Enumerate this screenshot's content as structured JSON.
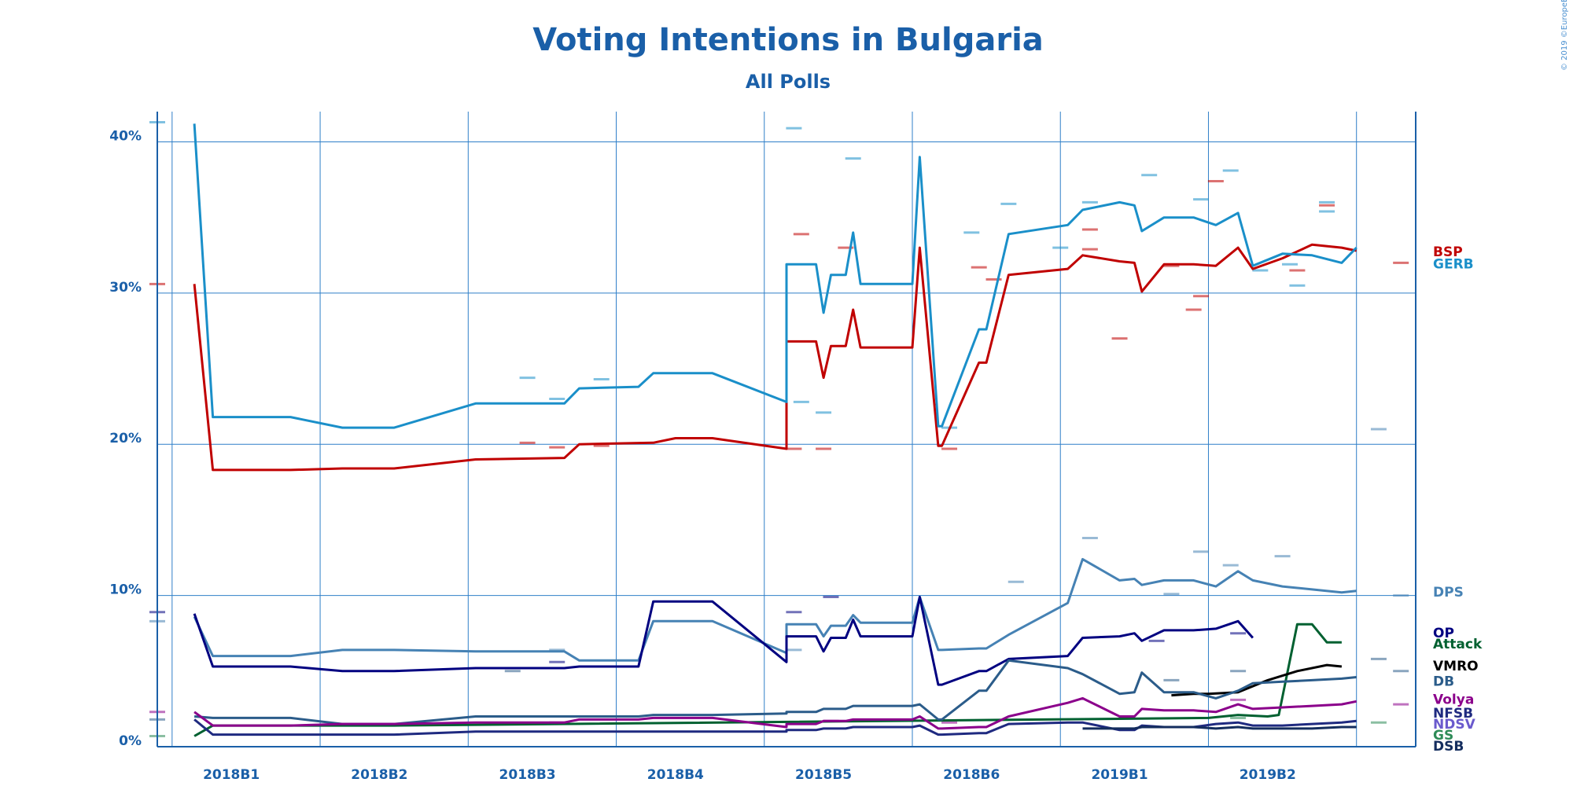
{
  "chart_data": {
    "type": "line",
    "title": "Voting Intentions in Bulgaria",
    "subtitle": "All Polls",
    "copyright": "© 2019 ©EuropeElects",
    "y_ticks": [
      {
        "value": 0,
        "label": "0%"
      },
      {
        "value": 10,
        "label": "10%"
      },
      {
        "value": 20,
        "label": "20%"
      },
      {
        "value": 30,
        "label": "30%"
      },
      {
        "value": 40,
        "label": "40%"
      }
    ],
    "ylim": [
      0,
      42
    ],
    "xlim": [
      0,
      17
    ],
    "x_ticks": [
      {
        "value": 1,
        "label": "2018B1"
      },
      {
        "value": 3,
        "label": "2018B2"
      },
      {
        "value": 5,
        "label": "2018B3"
      },
      {
        "value": 7,
        "label": "2018B4"
      },
      {
        "value": 9,
        "label": "2018B5"
      },
      {
        "value": 11,
        "label": "2018B6"
      },
      {
        "value": 13,
        "label": "2019B1"
      },
      {
        "value": 15,
        "label": "2019B2"
      }
    ],
    "x_gridlines": [
      0.2,
      2.2,
      4.2,
      6.2,
      8.2,
      10.2,
      12.2,
      14.2,
      16.2
    ],
    "legend_position": "right",
    "series": [
      {
        "name": "BSP",
        "color": "#c00000",
        "x": [
          0.5,
          0.75,
          1.8,
          2.5,
          3.2,
          4.3,
          5.5,
          5.7,
          6.7,
          7.0,
          7.5,
          8.5,
          8.5,
          8.9,
          9.0,
          9.1,
          9.3,
          9.4,
          9.5,
          10.2,
          10.3,
          10.55,
          10.6,
          11.1,
          11.2,
          11.5,
          12.3,
          12.5,
          13.0,
          13.2,
          13.3,
          13.6,
          14.0,
          14.3,
          14.6,
          14.8,
          15.2,
          15.6,
          16.0,
          16.2
        ],
        "y": [
          30.6,
          18.3,
          18.3,
          18.4,
          18.4,
          19.0,
          19.1,
          20.0,
          20.1,
          20.4,
          20.4,
          19.7,
          26.8,
          26.8,
          24.4,
          26.5,
          26.5,
          28.9,
          26.4,
          26.4,
          33.0,
          19.9,
          19.9,
          25.4,
          25.4,
          31.2,
          31.6,
          32.5,
          32.1,
          32.0,
          30.1,
          31.9,
          31.9,
          31.8,
          33.0,
          31.6,
          32.3,
          33.2,
          33.0,
          32.8
        ]
      },
      {
        "name": "GERB",
        "color": "#1a8fc9",
        "x": [
          0.5,
          0.75,
          1.8,
          2.5,
          3.2,
          4.3,
          5.5,
          5.7,
          6.5,
          6.7,
          7.5,
          8.5,
          8.5,
          8.9,
          9.0,
          9.1,
          9.3,
          9.4,
          9.5,
          10.2,
          10.3,
          10.55,
          10.6,
          11.1,
          11.2,
          11.5,
          12.3,
          12.5,
          13.0,
          13.2,
          13.3,
          13.6,
          14.0,
          14.3,
          14.6,
          14.8,
          15.2,
          15.6,
          16.0,
          16.2
        ],
        "y": [
          41.2,
          21.8,
          21.8,
          21.1,
          21.1,
          22.7,
          22.7,
          23.7,
          23.8,
          24.7,
          24.7,
          22.8,
          31.9,
          31.9,
          28.7,
          31.2,
          31.2,
          34.0,
          30.6,
          30.6,
          39.0,
          21.2,
          21.2,
          27.6,
          27.6,
          33.9,
          34.5,
          35.5,
          36.0,
          35.8,
          34.1,
          35.0,
          35.0,
          34.5,
          35.3,
          31.8,
          32.6,
          32.5,
          32.0,
          33.0
        ]
      },
      {
        "name": "DPS",
        "color": "#4682b4",
        "x": [
          0.5,
          0.75,
          1.8,
          2.5,
          3.2,
          4.3,
          5.5,
          5.7,
          6.5,
          6.7,
          7.5,
          8.5,
          8.5,
          8.9,
          9.0,
          9.1,
          9.3,
          9.4,
          9.5,
          10.2,
          10.3,
          10.55,
          10.6,
          11.1,
          11.2,
          11.5,
          12.3,
          12.5,
          13.0,
          13.2,
          13.3,
          13.6,
          14.0,
          14.3,
          14.6,
          14.8,
          15.2,
          15.6,
          16.0,
          16.2
        ],
        "y": [
          8.6,
          6.0,
          6.0,
          6.4,
          6.4,
          6.3,
          6.3,
          5.7,
          5.7,
          8.3,
          8.3,
          6.2,
          8.1,
          8.1,
          7.3,
          8.0,
          8.0,
          8.7,
          8.2,
          8.2,
          9.9,
          6.4,
          6.4,
          6.5,
          6.5,
          7.4,
          9.5,
          12.4,
          11.0,
          11.1,
          10.7,
          11.0,
          11.0,
          10.6,
          11.6,
          11.0,
          10.6,
          10.4,
          10.2,
          10.3
        ]
      },
      {
        "name": "OP",
        "color": "#000080",
        "x": [
          0.5,
          0.75,
          1.8,
          2.5,
          3.2,
          4.3,
          5.5,
          5.7,
          6.5,
          6.7,
          7.5,
          8.5,
          8.5,
          8.9,
          9.0,
          9.1,
          9.3,
          9.4,
          9.5,
          10.2,
          10.3,
          10.55,
          10.6,
          11.1,
          11.2,
          11.5,
          12.3,
          12.5,
          13.0,
          13.2,
          13.3,
          13.6,
          14.0,
          14.3,
          14.6,
          14.8
        ],
        "y": [
          8.8,
          5.3,
          5.3,
          5.0,
          5.0,
          5.2,
          5.2,
          5.3,
          5.3,
          9.6,
          9.6,
          5.6,
          7.3,
          7.3,
          6.3,
          7.2,
          7.2,
          8.4,
          7.3,
          7.3,
          9.9,
          4.1,
          4.1,
          5.0,
          5.0,
          5.8,
          6.0,
          7.2,
          7.3,
          7.5,
          7.0,
          7.7,
          7.7,
          7.8,
          8.3,
          7.2
        ]
      },
      {
        "name": "Attack",
        "color": "#006030",
        "x": [
          0.5,
          0.75,
          1.8,
          2.5,
          3.2,
          14.2,
          14.6,
          15.0,
          15.15,
          15.4,
          15.6,
          15.8,
          16.0
        ],
        "y": [
          0.7,
          1.4,
          1.4,
          1.4,
          1.4,
          1.9,
          2.1,
          2.0,
          2.1,
          8.1,
          8.1,
          6.9,
          6.9
        ]
      },
      {
        "name": "VMRO",
        "color": "#000000",
        "x": [
          13.7,
          14.0,
          14.2,
          14.6,
          15.0,
          15.4,
          15.8,
          16.0
        ],
        "y": [
          3.4,
          3.5,
          3.5,
          3.6,
          4.4,
          5.0,
          5.4,
          5.3
        ]
      },
      {
        "name": "DB",
        "color": "#2b5c8a",
        "x": [
          0.5,
          0.75,
          1.8,
          2.5,
          3.2,
          4.3,
          5.5,
          5.7,
          6.5,
          6.7,
          7.5,
          8.5,
          8.5,
          8.9,
          9.0,
          9.1,
          9.3,
          9.4,
          9.5,
          10.2,
          10.3,
          10.55,
          10.6,
          11.1,
          11.2,
          11.5,
          12.3,
          12.5,
          13.0,
          13.2,
          13.3,
          13.6,
          14.0,
          14.3,
          14.6,
          14.8,
          15.2,
          15.6,
          16.0,
          16.2
        ],
        "y": [
          2.0,
          1.9,
          1.9,
          1.5,
          1.5,
          2.0,
          2.0,
          2.0,
          2.0,
          2.1,
          2.1,
          2.2,
          2.3,
          2.3,
          2.5,
          2.5,
          2.5,
          2.7,
          2.7,
          2.7,
          2.8,
          1.8,
          1.8,
          3.7,
          3.7,
          5.7,
          5.2,
          4.8,
          3.5,
          3.6,
          4.9,
          3.6,
          3.6,
          3.2,
          3.7,
          4.2,
          4.3,
          4.4,
          4.5,
          4.6
        ]
      },
      {
        "name": "Volya",
        "color": "#8b008b",
        "x": [
          0.5,
          0.75,
          1.8,
          2.5,
          3.2,
          4.3,
          5.5,
          5.7,
          6.5,
          6.7,
          7.5,
          8.5,
          8.5,
          8.9,
          9.0,
          9.1,
          9.3,
          9.4,
          9.5,
          10.2,
          10.3,
          10.55,
          10.6,
          11.1,
          11.2,
          11.5,
          12.3,
          12.5,
          13.0,
          13.2,
          13.3,
          13.6,
          14.0,
          14.3,
          14.6,
          14.8,
          15.2,
          15.6,
          16.0,
          16.2
        ],
        "y": [
          2.3,
          1.4,
          1.4,
          1.5,
          1.5,
          1.6,
          1.6,
          1.8,
          1.8,
          1.9,
          1.9,
          1.3,
          1.5,
          1.5,
          1.7,
          1.7,
          1.7,
          1.8,
          1.8,
          1.8,
          2.0,
          1.2,
          1.2,
          1.3,
          1.3,
          2.0,
          2.9,
          3.2,
          2.0,
          2.0,
          2.5,
          2.4,
          2.4,
          2.3,
          2.8,
          2.5,
          2.6,
          2.7,
          2.8,
          3.0
        ]
      },
      {
        "name": "NFSB",
        "color": "#1f2a80",
        "x": [
          0.5,
          0.75,
          1.8,
          2.5,
          3.2,
          4.3,
          5.5,
          5.7,
          6.5,
          6.7,
          7.5,
          8.5,
          8.5,
          8.9,
          9.0,
          9.1,
          9.3,
          9.4,
          9.5,
          10.2,
          10.3,
          10.55,
          10.6,
          11.1,
          11.2,
          11.5,
          12.3,
          12.5,
          13.0,
          13.2,
          13.3,
          13.6,
          14.0,
          14.3,
          14.6,
          14.8,
          15.2,
          15.6,
          16.0,
          16.2
        ],
        "y": [
          1.8,
          0.8,
          0.8,
          0.8,
          0.8,
          1.0,
          1.0,
          1.0,
          1.0,
          1.0,
          1.0,
          1.0,
          1.1,
          1.1,
          1.2,
          1.2,
          1.2,
          1.3,
          1.3,
          1.3,
          1.4,
          0.8,
          0.8,
          0.9,
          0.9,
          1.5,
          1.6,
          1.6,
          1.1,
          1.1,
          1.4,
          1.3,
          1.3,
          1.5,
          1.6,
          1.4,
          1.4,
          1.5,
          1.6,
          1.7
        ]
      },
      {
        "name": "DSB",
        "color": "#142d5e",
        "x": [
          12.5,
          13.0,
          13.2,
          13.3,
          13.6,
          14.0,
          14.3,
          14.6,
          14.8,
          15.2,
          15.6,
          16.0,
          16.2
        ],
        "y": [
          1.2,
          1.2,
          1.2,
          1.3,
          1.3,
          1.3,
          1.2,
          1.3,
          1.2,
          1.2,
          1.2,
          1.3,
          1.3
        ]
      }
    ],
    "legend": [
      {
        "name": "BSP",
        "color": "#c00000",
        "value": 32.8
      },
      {
        "name": "GERB",
        "color": "#1a8fc9",
        "value": 32.0
      },
      {
        "name": "DPS",
        "color": "#4682b4",
        "value": 10.3
      },
      {
        "name": "OP",
        "color": "#000080",
        "value": 7.6
      },
      {
        "name": "Attack",
        "color": "#006030",
        "value": 7.0
      },
      {
        "name": "VMRO",
        "color": "#000000",
        "value": 5.4
      },
      {
        "name": "DB",
        "color": "#2b5c8a",
        "value": 4.4
      },
      {
        "name": "Volya",
        "color": "#8b008b",
        "value": 3.2
      },
      {
        "name": "NFSB",
        "color": "#1f2a80",
        "value": 2.3
      },
      {
        "name": "NDSV",
        "color": "#6a5acd",
        "value": 1.9
      },
      {
        "name": "GS",
        "color": "#2e8b57",
        "value": 1.6
      },
      {
        "name": "DSB",
        "color": "#142d5e",
        "value": 1.1
      }
    ],
    "poll_markers": [
      {
        "color": "#1a8fc9",
        "points": [
          [
            0.0,
            41.3
          ],
          [
            8.6,
            40.9
          ],
          [
            9.4,
            38.9
          ],
          [
            11.5,
            35.9
          ],
          [
            12.6,
            36.0
          ],
          [
            13.4,
            37.8
          ],
          [
            14.1,
            36.2
          ],
          [
            14.5,
            38.1
          ],
          [
            15.8,
            35.4
          ],
          [
            11.0,
            34.0
          ],
          [
            12.2,
            33.0
          ],
          [
            14.9,
            31.5
          ],
          [
            15.4,
            30.5
          ],
          [
            15.3,
            31.9
          ],
          [
            9.0,
            22.1
          ],
          [
            8.7,
            22.8
          ],
          [
            10.7,
            21.1
          ],
          [
            5.0,
            24.4
          ],
          [
            5.4,
            23.0
          ],
          [
            6.0,
            24.3
          ],
          [
            15.8,
            36.0
          ]
        ]
      },
      {
        "color": "#c00000",
        "points": [
          [
            0.0,
            30.6
          ],
          [
            8.7,
            33.9
          ],
          [
            9.3,
            33.0
          ],
          [
            11.3,
            30.9
          ],
          [
            12.6,
            34.2
          ],
          [
            13.7,
            31.8
          ],
          [
            14.1,
            29.8
          ],
          [
            14.0,
            28.9
          ],
          [
            14.3,
            37.4
          ],
          [
            15.4,
            31.5
          ],
          [
            15.8,
            35.8
          ],
          [
            16.8,
            32.0
          ],
          [
            13.0,
            27.0
          ],
          [
            12.6,
            32.9
          ],
          [
            9.0,
            19.7
          ],
          [
            8.6,
            19.7
          ],
          [
            10.7,
            19.7
          ],
          [
            5.0,
            20.1
          ],
          [
            5.4,
            19.8
          ],
          [
            6.0,
            19.9
          ],
          [
            11.1,
            31.7
          ]
        ]
      },
      {
        "color": "#4682b4",
        "points": [
          [
            0.0,
            8.3
          ],
          [
            5.4,
            6.4
          ],
          [
            8.6,
            6.4
          ],
          [
            12.6,
            13.8
          ],
          [
            14.1,
            12.9
          ],
          [
            14.5,
            12.0
          ],
          [
            15.2,
            12.6
          ],
          [
            11.6,
            10.9
          ],
          [
            13.7,
            10.1
          ],
          [
            16.5,
            21.0
          ],
          [
            16.8,
            10.0
          ]
        ]
      },
      {
        "color": "#000080",
        "points": [
          [
            0.0,
            8.9
          ],
          [
            5.4,
            5.6
          ],
          [
            8.6,
            8.9
          ],
          [
            9.1,
            9.9
          ],
          [
            13.5,
            7.0
          ],
          [
            14.6,
            7.5
          ]
        ]
      },
      {
        "color": "#2b5c8a",
        "points": [
          [
            0.0,
            1.8
          ],
          [
            4.8,
            5.0
          ],
          [
            13.7,
            4.4
          ],
          [
            14.6,
            5.0
          ],
          [
            16.5,
            5.8
          ],
          [
            16.8,
            5.0
          ]
        ]
      },
      {
        "color": "#8b008b",
        "points": [
          [
            0.0,
            2.3
          ],
          [
            5.4,
            1.6
          ],
          [
            9.1,
            1.7
          ],
          [
            10.7,
            1.6
          ],
          [
            14.6,
            3.1
          ],
          [
            16.8,
            2.8
          ]
        ]
      },
      {
        "color": "#2e8b57",
        "points": [
          [
            0.0,
            0.7
          ],
          [
            14.6,
            1.9
          ],
          [
            16.5,
            1.6
          ]
        ]
      }
    ]
  }
}
